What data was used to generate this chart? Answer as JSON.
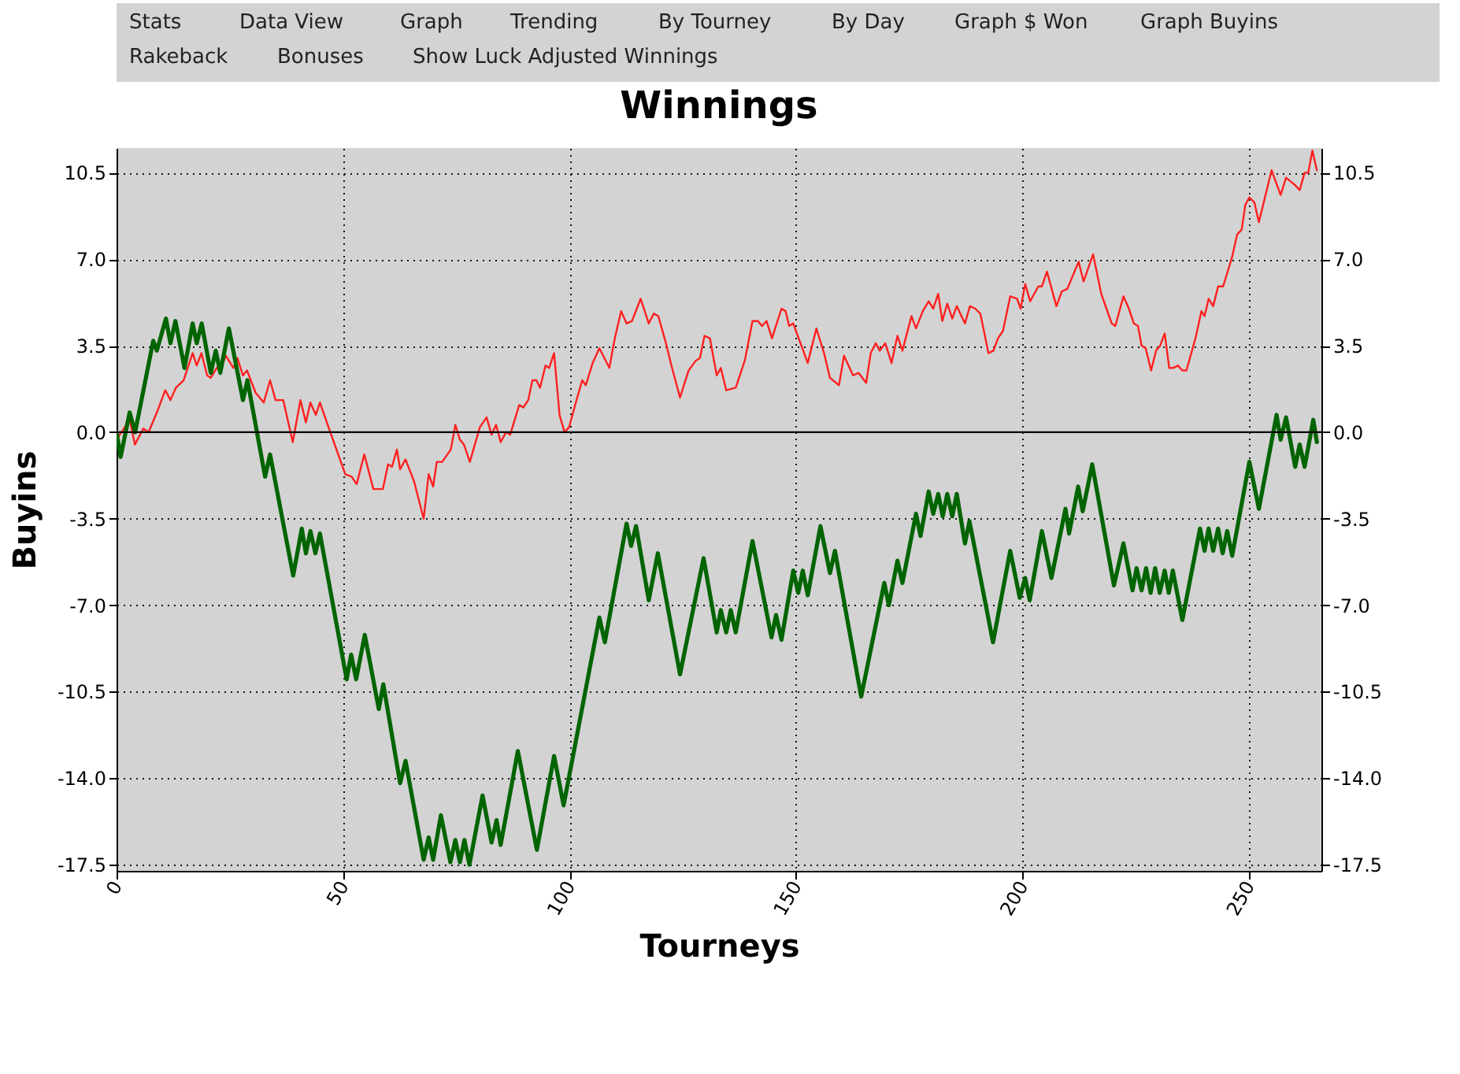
{
  "chart_data": {
    "type": "line",
    "title": "Winnings",
    "xlabel": "Tourneys",
    "ylabel": "Buyins",
    "annotations": [
      "Stats",
      "Data View",
      "Graph",
      "Trending",
      "By Tourney",
      "By Day",
      "Graph $ Won",
      "Graph Buyins",
      "Rakeback",
      "Bonuses",
      "Show Luck Adjusted Winnings"
    ],
    "xlim": [
      0,
      266
    ],
    "xticks": [
      0,
      50,
      100,
      150,
      200,
      250
    ],
    "ylim": [
      -17.75,
      11.5
    ],
    "yticks": [
      {
        "value": -17.5,
        "label": "-17.5"
      },
      {
        "value": -14,
        "label": "-14.0"
      },
      {
        "value": -10.5,
        "label": "-10.5"
      },
      {
        "value": -7,
        "label": "-7.0"
      },
      {
        "value": -3.5,
        "label": "-3.5"
      },
      {
        "value": 0,
        "label": "0.0"
      },
      {
        "value": 3.5,
        "label": "3.5"
      },
      {
        "value": 7,
        "label": "7.0"
      },
      {
        "value": 10.5,
        "label": "10.5"
      }
    ],
    "y2lim": [
      -17.75,
      11.5
    ],
    "y2ticks": [
      {
        "value": -17.5,
        "label": "-17.5"
      },
      {
        "value": -14,
        "label": "-14.0"
      },
      {
        "value": -10.5,
        "label": "-10.5"
      },
      {
        "value": -7,
        "label": "-7.0"
      },
      {
        "value": -3.5,
        "label": "-3.5"
      },
      {
        "value": 0,
        "label": "0.0"
      },
      {
        "value": 3.5,
        "label": "3.5"
      },
      {
        "value": 7,
        "label": "7.0"
      },
      {
        "value": 10.5,
        "label": "10.5"
      }
    ],
    "grid": true,
    "legend": false,
    "marker": "none",
    "line_style": "solid",
    "ref_lines": [
      {
        "axis": "y",
        "value": 0,
        "color": "#000000",
        "line_style": "solid"
      }
    ],
    "series": [
      {
        "color": "#ff2020",
        "x": [
          0.35,
          2.9,
          4.05,
          5.9,
          7.06,
          8.9,
          10.76,
          11.9,
          13.1,
          14.8,
          16.8,
          17.7,
          18.75,
          20.0,
          20.8,
          22.1,
          22.9,
          24.1,
          25.8,
          26.7,
          27.9,
          28.8,
          30.7,
          32.5,
          33.9,
          35.1,
          36.8,
          38.9,
          40.6,
          41.8,
          42.8,
          44.0,
          44.9,
          47.0,
          50.5,
          51.9,
          53.0,
          54.7,
          56.7,
          58.8,
          59.95,
          60.8,
          61.9,
          62.6,
          63.8,
          65.7,
          67.8,
          68.9,
          69.9,
          70.7,
          71.9,
          73.8,
          74.8,
          75.8,
          76.7,
          78.0,
          80.2,
          81.7,
          82.8,
          83.8,
          84.8,
          86.0,
          86.9,
          88.9,
          89.8,
          90.9,
          91.8,
          92.7,
          93.5,
          94.7,
          95.5,
          96.6,
          97.8,
          98.9,
          99.9,
          101.4,
          102.8,
          103.6,
          105.1,
          106.6,
          108.8,
          110.0,
          111.4,
          112.6,
          113.8,
          115.7,
          117.5,
          118.6,
          119.6,
          121.3,
          122.5,
          124.4,
          126.3,
          127.9,
          128.8,
          129.8,
          131.0,
          132.5,
          133.4,
          134.6,
          136.7,
          138.7,
          140.4,
          141.6,
          142.5,
          143.5,
          144.7,
          146.8,
          147.7,
          148.5,
          149.4,
          152.6,
          154.5,
          156.2,
          157.5,
          159.5,
          160.6,
          162.6,
          163.8,
          165.5,
          166.5,
          167.6,
          168.5,
          169.7,
          171.1,
          172.4,
          173.5,
          175.5,
          176.5,
          178.0,
          179.3,
          180.3,
          181.4,
          182.3,
          183.4,
          184.5,
          185.5,
          187.3,
          188.4,
          189.6,
          190.7,
          192.5,
          193.6,
          194.6,
          195.7,
          197.3,
          198.8,
          199.6,
          200.6,
          201.7,
          203.5,
          204.3,
          205.4,
          207.5,
          208.7,
          209.9,
          212.4,
          213.5,
          215.6,
          217.4,
          219.7,
          220.5,
          222.3,
          223.5,
          224.6,
          225.5,
          226.3,
          227.2,
          228.4,
          229.5,
          230.4,
          231.4,
          232.4,
          233.3,
          234.3,
          235.3,
          236.2,
          238.2,
          239.5,
          240.2,
          241.1,
          242.1,
          243.2,
          244.3,
          246.3,
          247.4,
          248.4,
          249.2,
          250.1,
          251.2,
          252.2,
          255.0,
          257.0,
          258.2,
          260.2,
          261.2,
          262.3,
          263.1,
          264.0,
          265.0
        ],
        "values": [
          -0.2,
          0.5,
          -0.5,
          0.15,
          0.0,
          0.8,
          1.7,
          1.3,
          1.8,
          2.1,
          3.2,
          2.7,
          3.2,
          2.3,
          2.2,
          2.6,
          2.5,
          3.1,
          2.6,
          3.0,
          2.3,
          2.5,
          1.6,
          1.2,
          2.1,
          1.3,
          1.3,
          -0.4,
          1.3,
          0.4,
          1.2,
          0.7,
          1.2,
          0.1,
          -1.7,
          -1.8,
          -2.1,
          -0.9,
          -2.3,
          -2.3,
          -1.3,
          -1.4,
          -0.7,
          -1.5,
          -1.1,
          -2.0,
          -3.5,
          -1.7,
          -2.2,
          -1.2,
          -1.2,
          -0.7,
          0.3,
          -0.3,
          -0.5,
          -1.2,
          0.2,
          0.6,
          -0.1,
          0.3,
          -0.4,
          0.0,
          -0.1,
          1.1,
          1.0,
          1.3,
          2.1,
          2.1,
          1.8,
          2.7,
          2.6,
          3.2,
          0.7,
          0.0,
          0.2,
          1.2,
          2.1,
          1.9,
          2.8,
          3.4,
          2.6,
          3.8,
          4.9,
          4.4,
          4.5,
          5.4,
          4.4,
          4.8,
          4.7,
          3.6,
          2.7,
          1.4,
          2.5,
          2.9,
          3.0,
          3.9,
          3.8,
          2.3,
          2.6,
          1.7,
          1.8,
          2.9,
          4.5,
          4.5,
          4.3,
          4.5,
          3.8,
          5.0,
          4.9,
          4.3,
          4.4,
          2.8,
          4.2,
          3.2,
          2.2,
          1.9,
          3.1,
          2.3,
          2.4,
          2.0,
          3.2,
          3.6,
          3.3,
          3.6,
          2.8,
          3.9,
          3.3,
          4.7,
          4.2,
          4.9,
          5.3,
          5.0,
          5.6,
          4.5,
          5.2,
          4.6,
          5.1,
          4.4,
          5.1,
          5.0,
          4.8,
          3.2,
          3.3,
          3.8,
          4.1,
          5.5,
          5.4,
          5.0,
          6.0,
          5.3,
          5.9,
          5.9,
          6.5,
          5.1,
          5.7,
          5.8,
          6.9,
          6.1,
          7.2,
          5.6,
          4.4,
          4.3,
          5.5,
          5.0,
          4.4,
          4.3,
          3.5,
          3.4,
          2.5,
          3.3,
          3.5,
          4.0,
          2.6,
          2.6,
          2.7,
          2.5,
          2.5,
          3.8,
          4.9,
          4.7,
          5.4,
          5.1,
          5.9,
          5.9,
          7.1,
          8.0,
          8.2,
          9.2,
          9.5,
          9.3,
          8.5,
          10.6,
          9.6,
          10.3,
          10.0,
          9.8,
          10.5,
          10.5,
          11.4,
          10.6
        ]
      },
      {
        "color": "#006400",
        "x": [
          0,
          0.9,
          2.9,
          4.1,
          8.1,
          8.9,
          10.9,
          11.9,
          13.0,
          15.0,
          16.8,
          17.7,
          18.8,
          20.8,
          21.9,
          22.9,
          24.8,
          27.9,
          28.9,
          32.8,
          33.9,
          39.0,
          40.9,
          41.8,
          42.8,
          43.9,
          44.9,
          50.8,
          51.8,
          52.9,
          54.8,
          57.9,
          58.9,
          62.6,
          63.8,
          67.8,
          68.9,
          69.9,
          71.6,
          73.7,
          74.8,
          75.8,
          76.8,
          77.9,
          80.8,
          82.8,
          83.9,
          84.8,
          88.6,
          92.8,
          96.6,
          98.7,
          106.6,
          107.8,
          112.6,
          113.6,
          114.7,
          117.5,
          119.5,
          124.4,
          129.6,
          132.5,
          133.4,
          134.6,
          135.6,
          136.7,
          140.4,
          144.6,
          145.6,
          146.8,
          149.4,
          150.5,
          151.5,
          152.6,
          155.4,
          157.5,
          158.6,
          164.4,
          169.5,
          170.5,
          172.4,
          173.5,
          176.5,
          177.5,
          179.3,
          180.3,
          181.4,
          182.4,
          183.4,
          184.5,
          185.5,
          187.3,
          188.3,
          193.5,
          197.3,
          199.4,
          200.6,
          201.6,
          204.3,
          206.4,
          209.5,
          210.3,
          212.3,
          213.3,
          215.4,
          220.2,
          222.3,
          224.3,
          225.2,
          226.3,
          227.3,
          228.3,
          229.3,
          230.3,
          231.4,
          232.3,
          233.2,
          235.3,
          239.2,
          240.2,
          241.1,
          242.1,
          243.2,
          244.2,
          245.2,
          246.3,
          250.1,
          252.2,
          256.1,
          257.0,
          258.2,
          260.2,
          261.2,
          262.3,
          264.2,
          265.0
        ],
        "values": [
          0.0,
          -1.0,
          0.8,
          0.0,
          3.7,
          3.3,
          4.6,
          3.6,
          4.5,
          2.6,
          4.4,
          3.6,
          4.4,
          2.4,
          3.3,
          2.4,
          4.2,
          1.3,
          2.1,
          -1.8,
          -0.9,
          -5.8,
          -3.9,
          -4.9,
          -4.0,
          -4.9,
          -4.1,
          -10.0,
          -9.0,
          -10.0,
          -8.2,
          -11.2,
          -10.2,
          -14.2,
          -13.3,
          -17.3,
          -16.4,
          -17.3,
          -15.5,
          -17.4,
          -16.5,
          -17.4,
          -16.5,
          -17.5,
          -14.7,
          -16.6,
          -15.7,
          -16.7,
          -12.9,
          -16.9,
          -13.1,
          -15.1,
          -7.5,
          -8.5,
          -3.7,
          -4.6,
          -3.8,
          -6.8,
          -4.9,
          -9.8,
          -5.1,
          -8.1,
          -7.2,
          -8.1,
          -7.2,
          -8.1,
          -4.4,
          -8.3,
          -7.4,
          -8.4,
          -5.6,
          -6.5,
          -5.6,
          -6.6,
          -3.8,
          -5.7,
          -4.8,
          -10.7,
          -6.1,
          -7.0,
          -5.2,
          -6.1,
          -3.3,
          -4.2,
          -2.4,
          -3.3,
          -2.5,
          -3.4,
          -2.5,
          -3.4,
          -2.5,
          -4.5,
          -3.6,
          -8.5,
          -4.8,
          -6.7,
          -5.9,
          -6.8,
          -4.0,
          -5.9,
          -3.1,
          -4.1,
          -2.2,
          -3.2,
          -1.3,
          -6.2,
          -4.5,
          -6.4,
          -5.5,
          -6.4,
          -5.5,
          -6.5,
          -5.5,
          -6.5,
          -5.6,
          -6.5,
          -5.6,
          -7.6,
          -3.9,
          -4.8,
          -3.9,
          -4.8,
          -3.9,
          -4.9,
          -4.0,
          -5.0,
          -1.2,
          -3.1,
          0.7,
          -0.3,
          0.6,
          -1.4,
          -0.5,
          -1.4,
          0.5,
          -0.4
        ]
      }
    ]
  }
}
